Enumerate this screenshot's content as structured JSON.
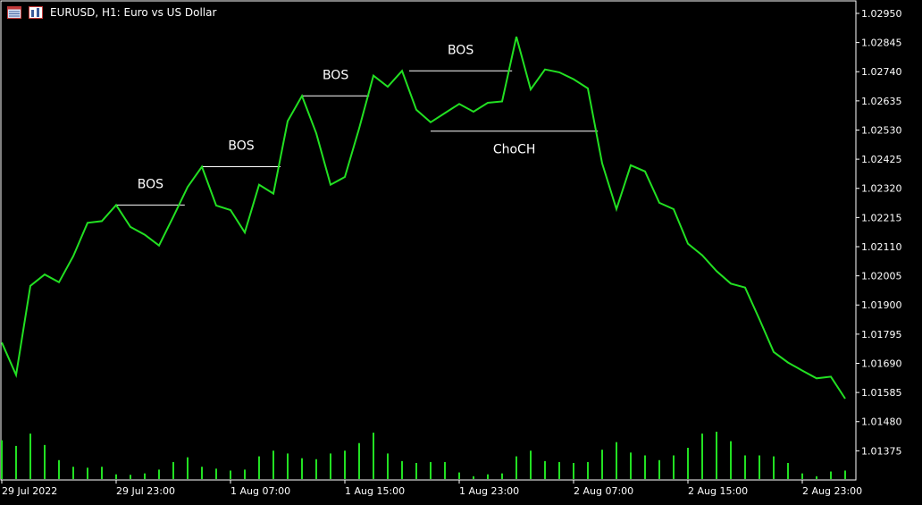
{
  "header": {
    "symbol_text": "EURUSD, H1:  Euro vs US Dollar",
    "icons": [
      "chart-properties-icon",
      "chart-period-icon"
    ]
  },
  "colors": {
    "background": "#000000",
    "price_line": "#22e022",
    "volume": "#22e022",
    "axis": "#ffffff",
    "annotation_line": "#ffffff"
  },
  "chart_data": {
    "type": "line",
    "title": "",
    "ylim": [
      1.0127,
      1.02995
    ],
    "y_ticks": [
      "1.02950",
      "1.02845",
      "1.02740",
      "1.02635",
      "1.02530",
      "1.02425",
      "1.02320",
      "1.02215",
      "1.02110",
      "1.02005",
      "1.01900",
      "1.01795",
      "1.01690",
      "1.01585",
      "1.01480",
      "1.01375"
    ],
    "x_ticks": [
      {
        "index": 0,
        "label": "29 Jul 2022"
      },
      {
        "index": 8,
        "label": "29 Jul 23:00"
      },
      {
        "index": 16,
        "label": "1 Aug 07:00"
      },
      {
        "index": 24,
        "label": "1 Aug 15:00"
      },
      {
        "index": 32,
        "label": "1 Aug 23:00"
      },
      {
        "index": 40,
        "label": "2 Aug 07:00"
      },
      {
        "index": 48,
        "label": "2 Aug 15:00"
      },
      {
        "index": 56,
        "label": "2 Aug 23:00"
      }
    ],
    "series": [
      {
        "values": [
          1.01765,
          1.01648,
          1.01969,
          1.0201,
          1.01982,
          1.02076,
          1.02196,
          1.02202,
          1.0226,
          1.02181,
          1.02153,
          1.02114,
          1.02218,
          1.02325,
          1.02398,
          1.02258,
          1.02242,
          1.02161,
          1.02333,
          1.02301,
          1.02562,
          1.02653,
          1.02518,
          1.02333,
          1.02361,
          1.02536,
          1.02726,
          1.02686,
          1.02743,
          1.02603,
          1.02558,
          1.02591,
          1.02624,
          1.02596,
          1.02628,
          1.02633,
          1.02866,
          1.02676,
          1.02748,
          1.02738,
          1.02713,
          1.0268,
          1.0241,
          1.02245,
          1.02403,
          1.02381,
          1.02268,
          1.02245,
          1.02121,
          1.02079,
          1.02022,
          1.01977,
          1.01963,
          1.01849,
          1.01731,
          1.01693,
          1.01664,
          1.01636,
          1.01642,
          1.01563
        ]
      }
    ],
    "volume_ratios": [
      0.82,
      0.7,
      0.96,
      0.72,
      0.4,
      0.26,
      0.24,
      0.26,
      0.1,
      0.09,
      0.12,
      0.2,
      0.36,
      0.46,
      0.26,
      0.22,
      0.18,
      0.2,
      0.48,
      0.6,
      0.54,
      0.44,
      0.42,
      0.54,
      0.6,
      0.76,
      0.98,
      0.54,
      0.38,
      0.34,
      0.36,
      0.36,
      0.14,
      0.06,
      0.1,
      0.12,
      0.48,
      0.6,
      0.38,
      0.36,
      0.34,
      0.36,
      0.62,
      0.78,
      0.56,
      0.5,
      0.4,
      0.5,
      0.66,
      0.96,
      1.0,
      0.8,
      0.5,
      0.5,
      0.48,
      0.34,
      0.12,
      0.06,
      0.16,
      0.18
    ],
    "annotations": [
      {
        "label": "BOS",
        "y": 1.0226,
        "from_index": 8,
        "to_index": 12.8
      },
      {
        "label": "BOS",
        "y": 1.02398,
        "from_index": 14,
        "to_index": 19.5
      },
      {
        "label": "BOS",
        "y": 1.02653,
        "from_index": 21,
        "to_index": 25.7
      },
      {
        "label": "BOS",
        "y": 1.02743,
        "from_index": 28.5,
        "to_index": 35.7
      },
      {
        "label": "ChoCH",
        "y": 1.02526,
        "from_index": 30,
        "to_index": 41.7
      }
    ]
  }
}
